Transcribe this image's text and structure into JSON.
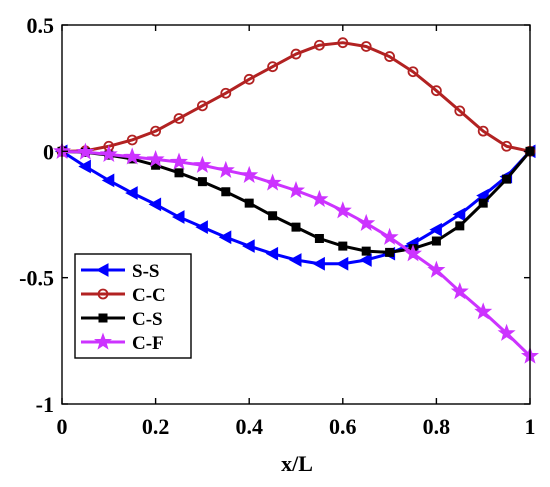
{
  "chart_data": {
    "type": "line",
    "title": "",
    "xlabel": "x/L",
    "ylabel": "",
    "xlim": [
      0,
      1
    ],
    "ylim": [
      -1,
      0.5
    ],
    "xticks": [
      0,
      0.2,
      0.4,
      0.6,
      0.8,
      1
    ],
    "xtick_labels": [
      "0",
      "0.2",
      "0.4",
      "0.6",
      "0.8",
      "1"
    ],
    "yticks": [
      -1,
      -0.5,
      0,
      0.5
    ],
    "ytick_labels": [
      "-1",
      "-0.5",
      "0",
      "0.5"
    ],
    "grid": false,
    "legend_position": "bottom-left",
    "x": [
      0,
      0.05,
      0.1,
      0.15,
      0.2,
      0.25,
      0.3,
      0.35,
      0.4,
      0.45,
      0.5,
      0.55,
      0.6,
      0.65,
      0.7,
      0.75,
      0.8,
      0.85,
      0.9,
      0.95,
      1
    ],
    "series": [
      {
        "name": "S-S",
        "color": "#0000ff",
        "marker": "triangle-left",
        "marker_fill": "#0000ff",
        "values": [
          0,
          -0.06,
          -0.115,
          -0.165,
          -0.21,
          -0.26,
          -0.3,
          -0.34,
          -0.375,
          -0.405,
          -0.43,
          -0.445,
          -0.445,
          -0.43,
          -0.405,
          -0.365,
          -0.31,
          -0.25,
          -0.175,
          -0.1,
          0
        ]
      },
      {
        "name": "C-C",
        "color": "#b22222",
        "marker": "circle",
        "marker_fill": "none",
        "values": [
          0,
          0.002,
          0.02,
          0.045,
          0.08,
          0.13,
          0.18,
          0.23,
          0.285,
          0.335,
          0.385,
          0.42,
          0.43,
          0.415,
          0.375,
          0.315,
          0.24,
          0.16,
          0.08,
          0.02,
          0
        ]
      },
      {
        "name": "C-S",
        "color": "#000000",
        "marker": "square",
        "marker_fill": "#000000",
        "values": [
          0,
          -0.004,
          -0.015,
          -0.03,
          -0.055,
          -0.085,
          -0.12,
          -0.16,
          -0.205,
          -0.255,
          -0.3,
          -0.345,
          -0.375,
          -0.395,
          -0.4,
          -0.385,
          -0.355,
          -0.295,
          -0.205,
          -0.11,
          0
        ]
      },
      {
        "name": "C-F",
        "color": "#cc33ff",
        "marker": "star",
        "marker_fill": "#cc33ff",
        "values": [
          0,
          -0.003,
          -0.012,
          -0.022,
          -0.032,
          -0.042,
          -0.055,
          -0.075,
          -0.095,
          -0.125,
          -0.155,
          -0.19,
          -0.235,
          -0.285,
          -0.34,
          -0.405,
          -0.47,
          -0.555,
          -0.635,
          -0.72,
          -0.81
        ]
      }
    ]
  },
  "colors": {
    "axis": "#000000",
    "background": "#ffffff"
  }
}
